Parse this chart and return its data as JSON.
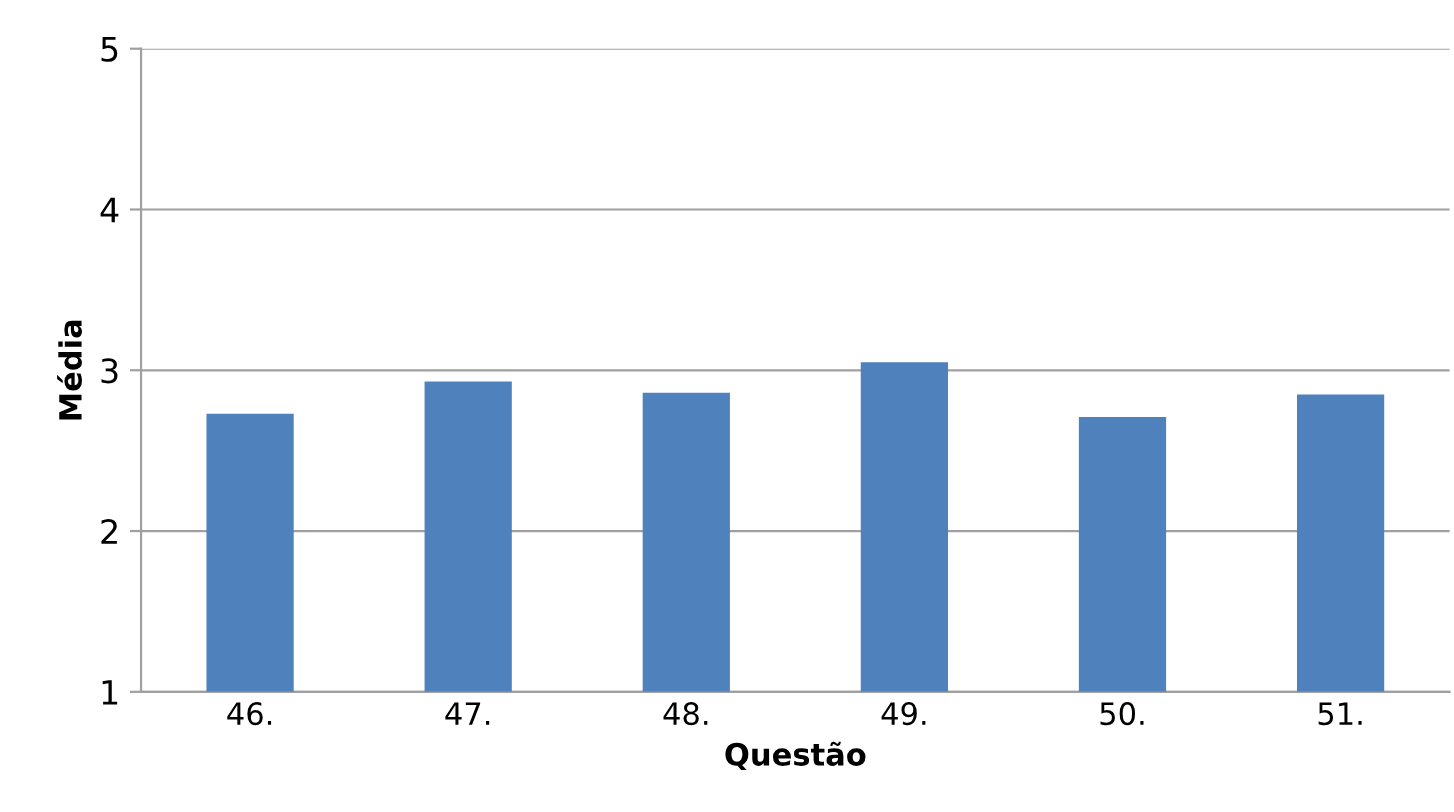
{
  "chart_data": {
    "type": "bar",
    "xlabel": "Questão",
    "ylabel": "Média",
    "categories": [
      "46.",
      "47.",
      "48.",
      "49.",
      "50.",
      "51."
    ],
    "values": [
      2.73,
      2.93,
      2.86,
      3.05,
      2.71,
      2.85
    ],
    "color": "#4f81bd",
    "ylim": [
      1,
      5
    ],
    "yticks": [
      1,
      2,
      3,
      4,
      5
    ],
    "grid": "y",
    "legend": false
  }
}
